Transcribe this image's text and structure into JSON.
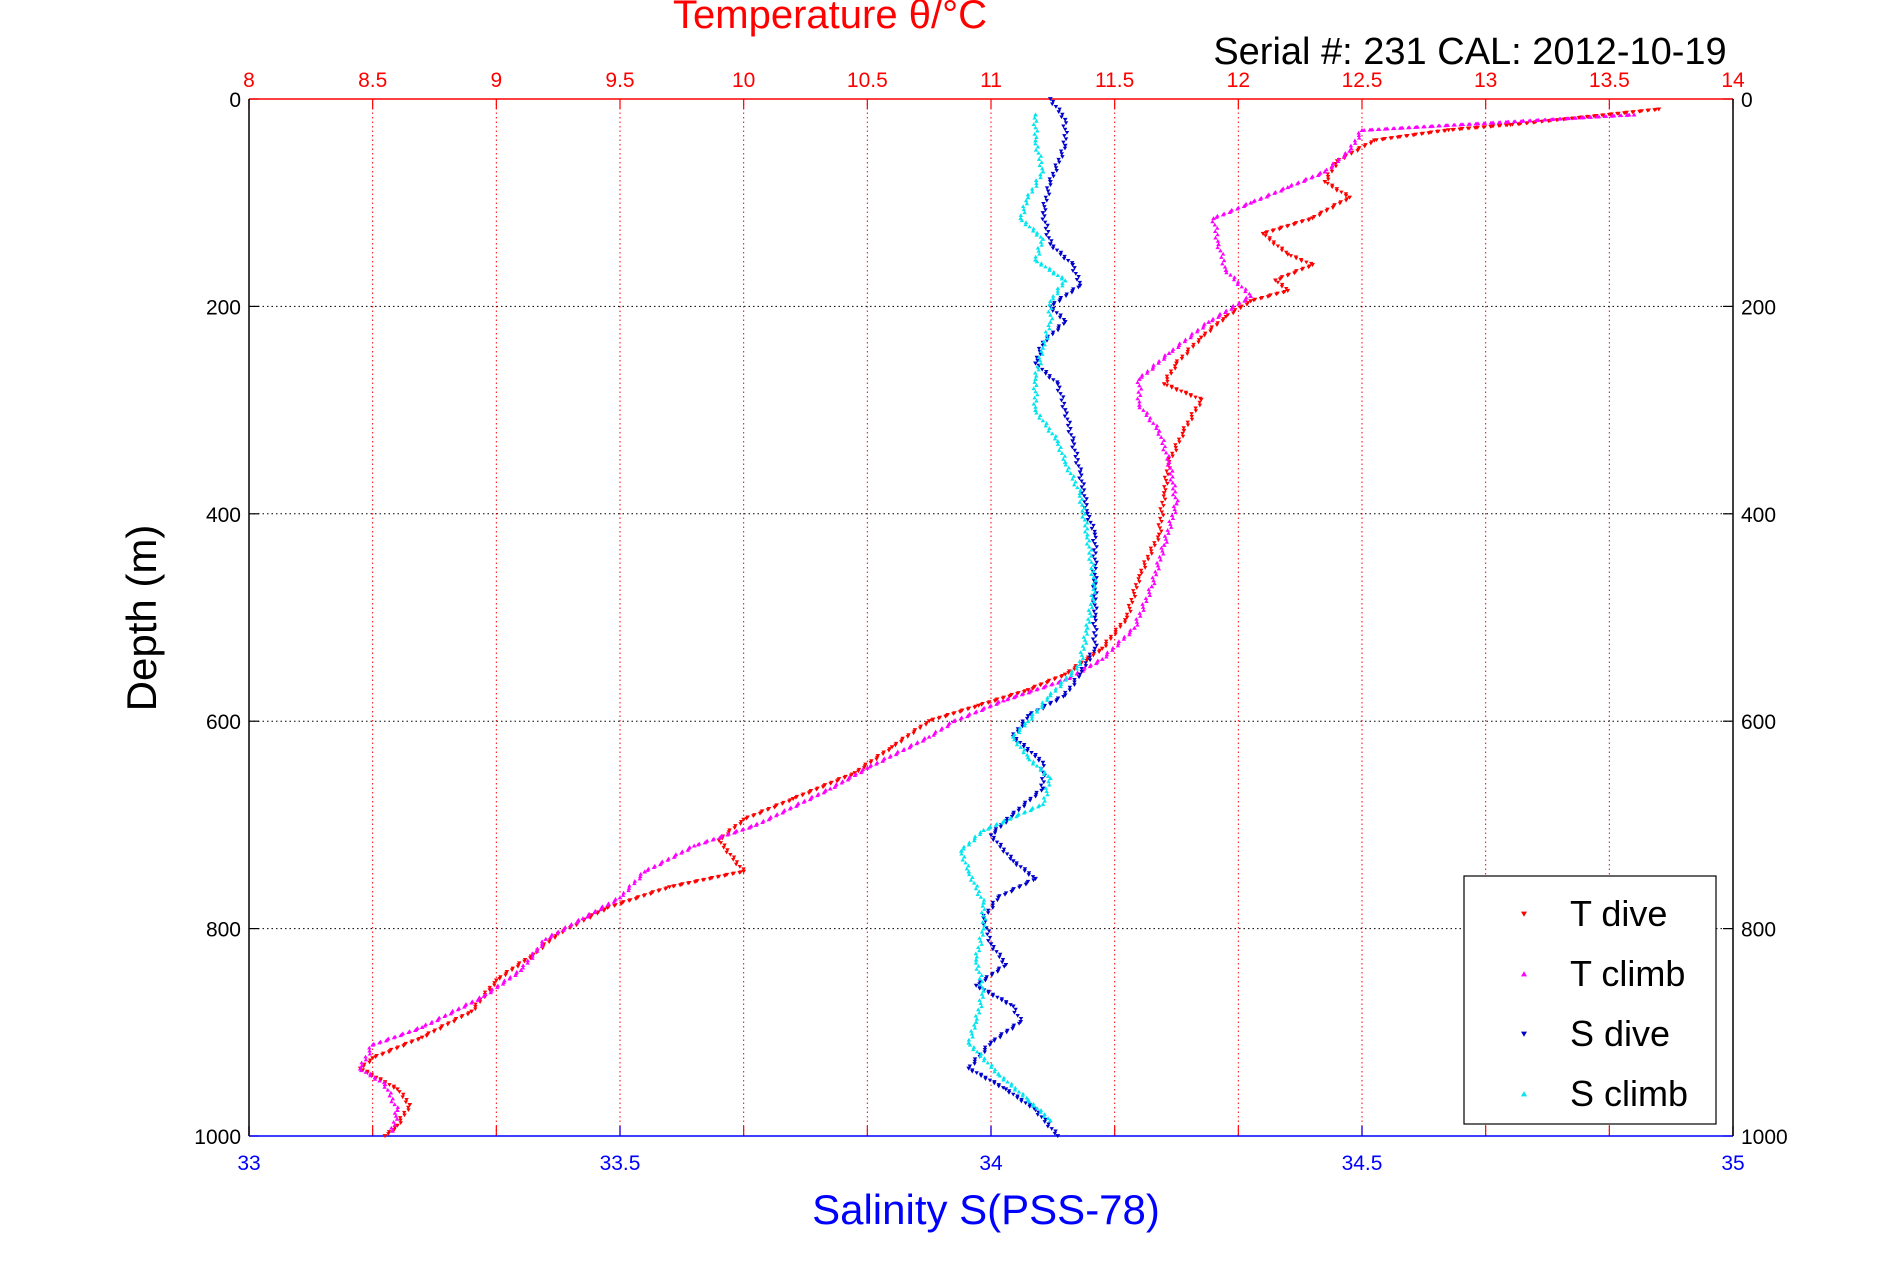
{
  "chart_data": {
    "type": "scatter",
    "title": "Temperature θ/°C",
    "subtitle": "Serial #: 231  CAL: 2012-10-19",
    "xlabel": "Salinity S(PSS-78)",
    "ylabel": "Depth (m)",
    "top_axis": {
      "label": "Temperature θ/°C",
      "range": [
        8,
        14
      ],
      "ticks": [
        "8",
        "8.5",
        "9",
        "9.5",
        "10",
        "10.5",
        "11",
        "11.5",
        "12",
        "12.5",
        "13",
        "13.5",
        "14"
      ],
      "color": "#ff0000"
    },
    "bottom_axis": {
      "label": "Salinity S(PSS-78)",
      "range": [
        33,
        35
      ],
      "ticks": [
        "33",
        "33.5",
        "34",
        "34.5",
        "35"
      ],
      "color": "#0000ff"
    },
    "y_axis": {
      "label": "Depth (m)",
      "range": [
        0,
        1000
      ],
      "reversed": true,
      "ticks": [
        "0",
        "200",
        "400",
        "600",
        "800",
        "1000"
      ]
    },
    "grid": true,
    "legend_position": "bottom-right",
    "series": [
      {
        "name": "T dive",
        "axis": "temperature",
        "color": "#ff0000",
        "marker": "triangle-down",
        "points": [
          [
            13.7,
            10
          ],
          [
            13.1,
            25
          ],
          [
            12.85,
            30
          ],
          [
            12.55,
            40
          ],
          [
            12.4,
            60
          ],
          [
            12.35,
            80
          ],
          [
            12.45,
            95
          ],
          [
            12.3,
            115
          ],
          [
            12.1,
            130
          ],
          [
            12.2,
            150
          ],
          [
            12.3,
            160
          ],
          [
            12.15,
            175
          ],
          [
            12.2,
            185
          ],
          [
            12.05,
            195
          ],
          [
            11.95,
            210
          ],
          [
            11.85,
            230
          ],
          [
            11.75,
            255
          ],
          [
            11.7,
            275
          ],
          [
            11.85,
            290
          ],
          [
            11.78,
            320
          ],
          [
            11.72,
            350
          ],
          [
            11.7,
            380
          ],
          [
            11.68,
            420
          ],
          [
            11.6,
            460
          ],
          [
            11.55,
            500
          ],
          [
            11.45,
            530
          ],
          [
            11.3,
            555
          ],
          [
            11.15,
            570
          ],
          [
            10.95,
            585
          ],
          [
            10.75,
            600
          ],
          [
            10.6,
            625
          ],
          [
            10.45,
            650
          ],
          [
            10.2,
            675
          ],
          [
            10.0,
            695
          ],
          [
            9.9,
            715
          ],
          [
            10.0,
            745
          ],
          [
            9.7,
            760
          ],
          [
            9.45,
            780
          ],
          [
            9.25,
            805
          ],
          [
            9.15,
            825
          ],
          [
            9.0,
            850
          ],
          [
            8.9,
            880
          ],
          [
            8.7,
            905
          ],
          [
            8.5,
            925
          ],
          [
            8.45,
            935
          ],
          [
            8.6,
            955
          ],
          [
            8.65,
            970
          ],
          [
            8.6,
            990
          ],
          [
            8.55,
            1000
          ]
        ]
      },
      {
        "name": "T climb",
        "axis": "temperature",
        "color": "#ff00ff",
        "marker": "triangle-up",
        "points": [
          [
            13.6,
            15
          ],
          [
            12.5,
            30
          ],
          [
            12.45,
            50
          ],
          [
            12.35,
            70
          ],
          [
            12.2,
            85
          ],
          [
            12.05,
            100
          ],
          [
            11.9,
            115
          ],
          [
            11.92,
            140
          ],
          [
            11.95,
            165
          ],
          [
            12.05,
            190
          ],
          [
            11.88,
            215
          ],
          [
            11.72,
            245
          ],
          [
            11.6,
            270
          ],
          [
            11.6,
            295
          ],
          [
            11.68,
            320
          ],
          [
            11.72,
            350
          ],
          [
            11.75,
            390
          ],
          [
            11.7,
            430
          ],
          [
            11.65,
            470
          ],
          [
            11.58,
            510
          ],
          [
            11.45,
            540
          ],
          [
            11.3,
            560
          ],
          [
            11.05,
            580
          ],
          [
            10.85,
            600
          ],
          [
            10.75,
            615
          ],
          [
            10.5,
            645
          ],
          [
            10.35,
            665
          ],
          [
            10.05,
            700
          ],
          [
            9.8,
            720
          ],
          [
            9.6,
            745
          ],
          [
            9.5,
            770
          ],
          [
            9.35,
            790
          ],
          [
            9.2,
            810
          ],
          [
            9.1,
            840
          ],
          [
            8.95,
            865
          ],
          [
            8.7,
            895
          ],
          [
            8.5,
            912
          ],
          [
            8.45,
            935
          ],
          [
            8.55,
            950
          ],
          [
            8.6,
            975
          ],
          [
            8.58,
            995
          ]
        ]
      },
      {
        "name": "S dive",
        "axis": "salinity",
        "color": "#0000cc",
        "marker": "triangle-down",
        "points": [
          [
            34.08,
            0
          ],
          [
            34.1,
            20
          ],
          [
            34.1,
            45
          ],
          [
            34.08,
            80
          ],
          [
            34.07,
            110
          ],
          [
            34.08,
            140
          ],
          [
            34.11,
            160
          ],
          [
            34.12,
            180
          ],
          [
            34.08,
            200
          ],
          [
            34.1,
            215
          ],
          [
            34.07,
            235
          ],
          [
            34.06,
            255
          ],
          [
            34.09,
            275
          ],
          [
            34.1,
            300
          ],
          [
            34.11,
            330
          ],
          [
            34.12,
            360
          ],
          [
            34.13,
            400
          ],
          [
            34.14,
            420
          ],
          [
            34.14,
            450
          ],
          [
            34.14,
            500
          ],
          [
            34.14,
            530
          ],
          [
            34.12,
            555
          ],
          [
            34.1,
            575
          ],
          [
            34.05,
            595
          ],
          [
            34.03,
            615
          ],
          [
            34.07,
            640
          ],
          [
            34.07,
            665
          ],
          [
            34.03,
            690
          ],
          [
            34.0,
            710
          ],
          [
            34.03,
            735
          ],
          [
            34.06,
            752
          ],
          [
            34.01,
            770
          ],
          [
            33.99,
            790
          ],
          [
            34.0,
            815
          ],
          [
            34.02,
            835
          ],
          [
            33.98,
            855
          ],
          [
            34.03,
            875
          ],
          [
            34.04,
            890
          ],
          [
            34.0,
            910
          ],
          [
            33.97,
            935
          ],
          [
            34.02,
            955
          ],
          [
            34.06,
            975
          ],
          [
            34.09,
            1000
          ]
        ]
      },
      {
        "name": "S climb",
        "axis": "salinity",
        "color": "#00e5ee",
        "marker": "triangle-up",
        "points": [
          [
            34.06,
            15
          ],
          [
            34.06,
            40
          ],
          [
            34.07,
            70
          ],
          [
            34.05,
            95
          ],
          [
            34.04,
            115
          ],
          [
            34.07,
            135
          ],
          [
            34.06,
            155
          ],
          [
            34.1,
            175
          ],
          [
            34.08,
            195
          ],
          [
            34.08,
            215
          ],
          [
            34.07,
            240
          ],
          [
            34.06,
            270
          ],
          [
            34.06,
            300
          ],
          [
            34.09,
            330
          ],
          [
            34.1,
            350
          ],
          [
            34.12,
            380
          ],
          [
            34.13,
            420
          ],
          [
            34.14,
            470
          ],
          [
            34.13,
            510
          ],
          [
            34.12,
            545
          ],
          [
            34.08,
            575
          ],
          [
            34.05,
            600
          ],
          [
            34.03,
            615
          ],
          [
            34.05,
            635
          ],
          [
            34.08,
            655
          ],
          [
            34.07,
            680
          ],
          [
            33.99,
            705
          ],
          [
            33.96,
            725
          ],
          [
            33.97,
            745
          ],
          [
            33.99,
            775
          ],
          [
            33.99,
            800
          ],
          [
            33.98,
            830
          ],
          [
            33.99,
            860
          ],
          [
            33.98,
            890
          ],
          [
            33.97,
            910
          ],
          [
            34.01,
            940
          ],
          [
            34.05,
            965
          ],
          [
            34.08,
            985
          ]
        ]
      }
    ]
  }
}
